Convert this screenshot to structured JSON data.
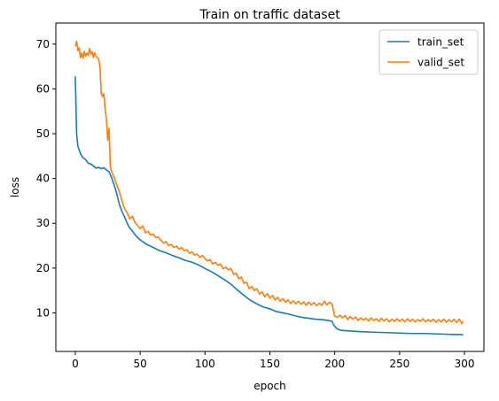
{
  "chart_data": {
    "type": "line",
    "title": "Train on traffic dataset",
    "xlabel": "epoch",
    "ylabel": "loss",
    "xlim": [
      -15,
      315
    ],
    "ylim": [
      1.4,
      74.7
    ],
    "xticks": [
      0,
      50,
      100,
      150,
      200,
      250,
      300
    ],
    "yticks": [
      10,
      20,
      30,
      40,
      50,
      60,
      70
    ],
    "grid": false,
    "legend_position": "top-right",
    "series": [
      {
        "name": "train_set",
        "color": "#1f77b4",
        "points": [
          [
            0,
            62.8
          ],
          [
            1,
            50.0
          ],
          [
            2,
            47.2
          ],
          [
            4,
            45.5
          ],
          [
            6,
            44.6
          ],
          [
            8,
            44.2
          ],
          [
            10,
            43.4
          ],
          [
            12,
            43.2
          ],
          [
            14,
            42.8
          ],
          [
            16,
            42.3
          ],
          [
            18,
            42.5
          ],
          [
            20,
            42.2
          ],
          [
            22,
            42.4
          ],
          [
            24,
            41.9
          ],
          [
            26,
            41.5
          ],
          [
            28,
            40.2
          ],
          [
            30,
            38.5
          ],
          [
            32,
            36.5
          ],
          [
            34,
            34.2
          ],
          [
            36,
            32.6
          ],
          [
            38,
            31.4
          ],
          [
            40,
            30.0
          ],
          [
            42,
            28.9
          ],
          [
            44,
            28.3
          ],
          [
            46,
            27.5
          ],
          [
            48,
            26.8
          ],
          [
            50,
            26.3
          ],
          [
            55,
            25.3
          ],
          [
            60,
            24.6
          ],
          [
            65,
            23.9
          ],
          [
            70,
            23.4
          ],
          [
            75,
            22.8
          ],
          [
            80,
            22.3
          ],
          [
            85,
            21.7
          ],
          [
            90,
            21.3
          ],
          [
            95,
            20.7
          ],
          [
            100,
            19.9
          ],
          [
            105,
            19.2
          ],
          [
            110,
            18.3
          ],
          [
            115,
            17.4
          ],
          [
            120,
            16.4
          ],
          [
            125,
            15.1
          ],
          [
            130,
            13.9
          ],
          [
            135,
            12.8
          ],
          [
            140,
            12.0
          ],
          [
            145,
            11.3
          ],
          [
            150,
            10.9
          ],
          [
            155,
            10.3
          ],
          [
            160,
            10.0
          ],
          [
            165,
            9.7
          ],
          [
            170,
            9.3
          ],
          [
            175,
            9.0
          ],
          [
            180,
            8.8
          ],
          [
            185,
            8.6
          ],
          [
            190,
            8.5
          ],
          [
            195,
            8.3
          ],
          [
            198,
            8.1
          ],
          [
            199,
            7.4
          ],
          [
            200,
            7.0
          ],
          [
            202,
            6.4
          ],
          [
            205,
            6.1
          ],
          [
            210,
            6.0
          ],
          [
            215,
            5.9
          ],
          [
            220,
            5.8
          ],
          [
            230,
            5.7
          ],
          [
            240,
            5.6
          ],
          [
            250,
            5.5
          ],
          [
            260,
            5.4
          ],
          [
            270,
            5.4
          ],
          [
            280,
            5.3
          ],
          [
            290,
            5.2
          ],
          [
            296,
            5.2
          ],
          [
            299,
            5.1
          ]
        ]
      },
      {
        "name": "valid_set",
        "color": "#ff7f0e",
        "points": [
          [
            0,
            69.5
          ],
          [
            1,
            70.6
          ],
          [
            2,
            68.5
          ],
          [
            3,
            69.2
          ],
          [
            4,
            67.0
          ],
          [
            5,
            68.0
          ],
          [
            6,
            66.8
          ],
          [
            7,
            68.4
          ],
          [
            8,
            67.3
          ],
          [
            9,
            68.0
          ],
          [
            10,
            67.5
          ],
          [
            11,
            69.0
          ],
          [
            12,
            67.8
          ],
          [
            13,
            68.3
          ],
          [
            14,
            67.0
          ],
          [
            15,
            68.1
          ],
          [
            16,
            67.2
          ],
          [
            17,
            67.0
          ],
          [
            18,
            66.6
          ],
          [
            19,
            65.0
          ],
          [
            20,
            59.0
          ],
          [
            21,
            58.3
          ],
          [
            22,
            58.9
          ],
          [
            23,
            55.5
          ],
          [
            24,
            53.2
          ],
          [
            25,
            48.5
          ],
          [
            26,
            51.2
          ],
          [
            27,
            42.8
          ],
          [
            28,
            41.5
          ],
          [
            30,
            40.2
          ],
          [
            32,
            38.5
          ],
          [
            34,
            37.0
          ],
          [
            36,
            35.0
          ],
          [
            38,
            33.2
          ],
          [
            40,
            32.3
          ],
          [
            42,
            31.0
          ],
          [
            44,
            31.6
          ],
          [
            46,
            30.2
          ],
          [
            48,
            29.5
          ],
          [
            50,
            28.8
          ],
          [
            52,
            29.4
          ],
          [
            54,
            27.9
          ],
          [
            56,
            28.2
          ],
          [
            58,
            27.4
          ],
          [
            60,
            27.6
          ],
          [
            62,
            26.8
          ],
          [
            64,
            26.9
          ],
          [
            66,
            26.2
          ],
          [
            68,
            25.6
          ],
          [
            70,
            25.9
          ],
          [
            72,
            25.0
          ],
          [
            74,
            25.3
          ],
          [
            76,
            24.6
          ],
          [
            78,
            24.9
          ],
          [
            80,
            24.2
          ],
          [
            82,
            24.6
          ],
          [
            84,
            23.9
          ],
          [
            86,
            24.1
          ],
          [
            88,
            23.3
          ],
          [
            90,
            23.6
          ],
          [
            92,
            22.9
          ],
          [
            94,
            23.1
          ],
          [
            96,
            22.4
          ],
          [
            98,
            22.8
          ],
          [
            100,
            22.1
          ],
          [
            102,
            21.6
          ],
          [
            104,
            21.9
          ],
          [
            106,
            20.9
          ],
          [
            108,
            21.3
          ],
          [
            110,
            20.6
          ],
          [
            112,
            20.9
          ],
          [
            114,
            19.8
          ],
          [
            116,
            20.2
          ],
          [
            118,
            19.6
          ],
          [
            120,
            19.9
          ],
          [
            122,
            18.6
          ],
          [
            124,
            18.9
          ],
          [
            126,
            17.6
          ],
          [
            128,
            18.0
          ],
          [
            130,
            16.6
          ],
          [
            132,
            16.9
          ],
          [
            134,
            15.4
          ],
          [
            136,
            15.9
          ],
          [
            138,
            15.0
          ],
          [
            140,
            15.4
          ],
          [
            142,
            14.2
          ],
          [
            144,
            14.7
          ],
          [
            146,
            13.6
          ],
          [
            148,
            14.3
          ],
          [
            150,
            13.3
          ],
          [
            152,
            13.9
          ],
          [
            154,
            12.9
          ],
          [
            156,
            13.5
          ],
          [
            158,
            12.6
          ],
          [
            160,
            13.2
          ],
          [
            162,
            12.4
          ],
          [
            164,
            12.9
          ],
          [
            166,
            12.1
          ],
          [
            168,
            12.7
          ],
          [
            170,
            12.0
          ],
          [
            172,
            12.6
          ],
          [
            174,
            11.9
          ],
          [
            176,
            12.5
          ],
          [
            178,
            11.7
          ],
          [
            180,
            12.4
          ],
          [
            182,
            11.8
          ],
          [
            184,
            12.3
          ],
          [
            186,
            11.6
          ],
          [
            188,
            12.2
          ],
          [
            190,
            11.7
          ],
          [
            192,
            12.6
          ],
          [
            194,
            11.8
          ],
          [
            196,
            12.4
          ],
          [
            198,
            11.9
          ],
          [
            199,
            10.5
          ],
          [
            200,
            9.3
          ],
          [
            202,
            9.0
          ],
          [
            204,
            9.5
          ],
          [
            206,
            8.9
          ],
          [
            208,
            9.4
          ],
          [
            210,
            8.5
          ],
          [
            212,
            9.2
          ],
          [
            214,
            8.6
          ],
          [
            216,
            9.1
          ],
          [
            218,
            8.3
          ],
          [
            220,
            8.9
          ],
          [
            222,
            8.4
          ],
          [
            224,
            8.8
          ],
          [
            226,
            8.2
          ],
          [
            228,
            8.9
          ],
          [
            230,
            8.3
          ],
          [
            232,
            8.7
          ],
          [
            234,
            8.1
          ],
          [
            236,
            8.8
          ],
          [
            238,
            8.2
          ],
          [
            240,
            8.7
          ],
          [
            242,
            8.0
          ],
          [
            244,
            8.6
          ],
          [
            246,
            8.1
          ],
          [
            248,
            8.7
          ],
          [
            250,
            8.1
          ],
          [
            252,
            8.6
          ],
          [
            254,
            8.0
          ],
          [
            256,
            8.7
          ],
          [
            258,
            8.1
          ],
          [
            260,
            8.6
          ],
          [
            262,
            8.0
          ],
          [
            264,
            8.5
          ],
          [
            266,
            8.1
          ],
          [
            268,
            8.7
          ],
          [
            270,
            8.0
          ],
          [
            272,
            8.5
          ],
          [
            274,
            8.1
          ],
          [
            276,
            8.6
          ],
          [
            278,
            7.9
          ],
          [
            280,
            8.5
          ],
          [
            282,
            8.0
          ],
          [
            284,
            8.6
          ],
          [
            286,
            7.9
          ],
          [
            288,
            8.5
          ],
          [
            290,
            8.0
          ],
          [
            292,
            8.6
          ],
          [
            294,
            7.9
          ],
          [
            296,
            8.6
          ],
          [
            298,
            7.6
          ],
          [
            299,
            8.2
          ]
        ]
      }
    ]
  }
}
